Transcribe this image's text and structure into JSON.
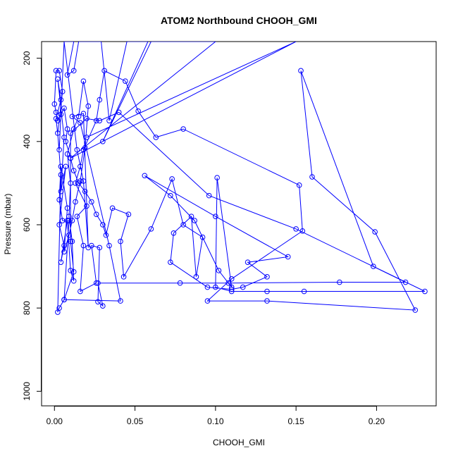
{
  "chart_data": {
    "type": "line",
    "title": "ATOM2 Northbound CHOOH_GMI",
    "xlabel": "CHOOH_GMI",
    "ylabel": "Pressure (mbar)",
    "xlim": [
      -0.008,
      0.237
    ],
    "ylim": [
      1035,
      160
    ],
    "y_inverted": true,
    "x_ticks": [
      0.0,
      0.05,
      0.1,
      0.15,
      0.2
    ],
    "x_tick_labels": [
      "0.00",
      "0.05",
      "0.10",
      "0.15",
      "0.20"
    ],
    "y_ticks": [
      200,
      400,
      600,
      800,
      1000
    ],
    "y_tick_labels": [
      "200",
      "400",
      "600",
      "800",
      "1000"
    ],
    "grid": false,
    "legend": "none",
    "series_color": "#0000ff",
    "series": [
      {
        "points": [
          [
            0.006,
            160
          ],
          [
            0.003,
            420
          ],
          [
            0.001,
            345
          ],
          [
            0.004,
            300
          ],
          [
            0.002,
            250
          ],
          [
            0.006,
            390
          ],
          [
            0.004,
            520
          ],
          [
            0.007,
            460
          ],
          [
            0.003,
            600
          ],
          [
            0.006,
            650
          ],
          [
            0.004,
            690
          ],
          [
            0.008,
            590
          ],
          [
            0.01,
            710
          ],
          [
            0.012,
            735
          ],
          [
            0.011,
            640
          ],
          [
            0.009,
            580
          ],
          [
            0.01,
            500
          ],
          [
            0.008,
            430
          ],
          [
            0.012,
            370
          ],
          [
            0.015,
            340
          ],
          [
            0.018,
            255
          ],
          [
            0.021,
            315
          ],
          [
            0.019,
            415
          ],
          [
            0.016,
            495
          ],
          [
            0.013,
            545
          ],
          [
            0.011,
            590
          ],
          [
            0.009,
            625
          ],
          [
            0.006,
            665
          ],
          [
            0.008,
            560
          ],
          [
            0.004,
            460
          ],
          [
            0.003,
            540
          ],
          [
            0.005,
            590
          ],
          [
            0.009,
            590
          ],
          [
            0.006,
            780
          ],
          [
            0.003,
            800
          ],
          [
            0.002,
            810
          ],
          [
            0.004,
            480
          ],
          [
            0.002,
            380
          ],
          [
            0.005,
            280
          ],
          [
            0.003,
            230
          ],
          [
            0.001,
            230
          ],
          [
            0.0,
            310
          ],
          [
            0.001,
            330
          ],
          [
            0.002,
            350
          ],
          [
            0.004,
            335
          ],
          [
            0.006,
            320
          ],
          [
            0.008,
            370
          ],
          [
            0.007,
            400
          ],
          [
            0.01,
            440
          ],
          [
            0.012,
            470
          ],
          [
            0.015,
            500
          ],
          [
            0.019,
            520
          ],
          [
            0.023,
            545
          ],
          [
            0.026,
            575
          ],
          [
            0.03,
            600
          ],
          [
            0.032,
            625
          ],
          [
            0.036,
            560
          ],
          [
            0.046,
            575
          ],
          [
            0.041,
            640
          ],
          [
            0.043,
            725
          ],
          [
            0.06,
            610
          ],
          [
            0.073,
            490
          ],
          [
            0.08,
            600
          ],
          [
            0.092,
            630
          ],
          [
            0.088,
            725
          ],
          [
            0.085,
            580
          ],
          [
            0.074,
            620
          ],
          [
            0.072,
            690
          ],
          [
            0.095,
            750
          ],
          [
            0.11,
            755
          ],
          [
            0.117,
            750
          ],
          [
            0.132,
            725
          ],
          [
            0.12,
            690
          ],
          [
            0.145,
            677
          ],
          [
            0.1,
            580
          ],
          [
            0.056,
            482
          ],
          [
            0.072,
            530
          ],
          [
            0.087,
            590
          ],
          [
            0.102,
            710
          ],
          [
            0.11,
            750
          ],
          [
            0.101,
            487
          ],
          [
            0.1,
            750
          ],
          [
            0.11,
            760
          ],
          [
            0.132,
            760
          ],
          [
            0.155,
            760
          ],
          [
            0.23,
            760
          ],
          [
            0.198,
            700
          ],
          [
            0.153,
            230
          ],
          [
            0.16,
            485
          ],
          [
            0.199,
            617
          ],
          [
            0.224,
            805
          ],
          [
            0.132,
            783
          ],
          [
            0.095,
            783
          ],
          [
            0.11,
            730
          ],
          [
            0.154,
            615
          ],
          [
            0.152,
            505
          ],
          [
            0.08,
            370
          ],
          [
            0.063,
            390
          ],
          [
            0.052,
            327
          ],
          [
            0.044,
            255
          ],
          [
            0.031,
            230
          ],
          [
            0.028,
            300
          ],
          [
            0.026,
            350
          ],
          [
            0.018,
            420
          ],
          [
            0.016,
            460
          ],
          [
            0.013,
            500
          ],
          [
            0.02,
            555
          ],
          [
            0.014,
            580
          ],
          [
            0.018,
            650
          ],
          [
            0.016,
            760
          ],
          [
            0.026,
            740
          ],
          [
            0.023,
            650
          ],
          [
            0.028,
            655
          ],
          [
            0.027,
            785
          ],
          [
            0.03,
            795
          ],
          [
            0.027,
            740
          ],
          [
            0.078,
            740
          ],
          [
            0.108,
            740
          ],
          [
            0.177,
            738
          ],
          [
            0.218,
            738
          ],
          [
            0.15,
            610
          ],
          [
            0.096,
            530
          ],
          [
            0.04,
            330
          ],
          [
            0.028,
            350
          ],
          [
            0.02,
            345
          ],
          [
            0.01,
            380
          ],
          [
            0.01,
            640
          ],
          [
            0.012,
            713
          ],
          [
            0.006,
            780
          ],
          [
            0.041,
            783
          ],
          [
            0.034,
            650
          ],
          [
            0.016,
            355
          ],
          [
            0.011,
            340
          ],
          [
            0.018,
            333
          ],
          [
            0.021,
            655
          ],
          [
            0.018,
            495
          ],
          [
            0.014,
            420
          ],
          [
            0.006,
            160
          ],
          [
            0.012,
            160
          ],
          [
            0.008,
            240
          ],
          [
            0.012,
            230
          ],
          [
            0.015,
            160
          ],
          [
            0.029,
            160
          ],
          [
            0.034,
            350
          ],
          [
            0.045,
            160
          ],
          [
            0.058,
            160
          ],
          [
            0.03,
            400
          ],
          [
            0.06,
            160
          ],
          [
            0.1,
            160
          ],
          [
            0.01,
            440
          ],
          [
            0.15,
            160
          ],
          [
            0.02,
            390
          ]
        ]
      }
    ]
  }
}
